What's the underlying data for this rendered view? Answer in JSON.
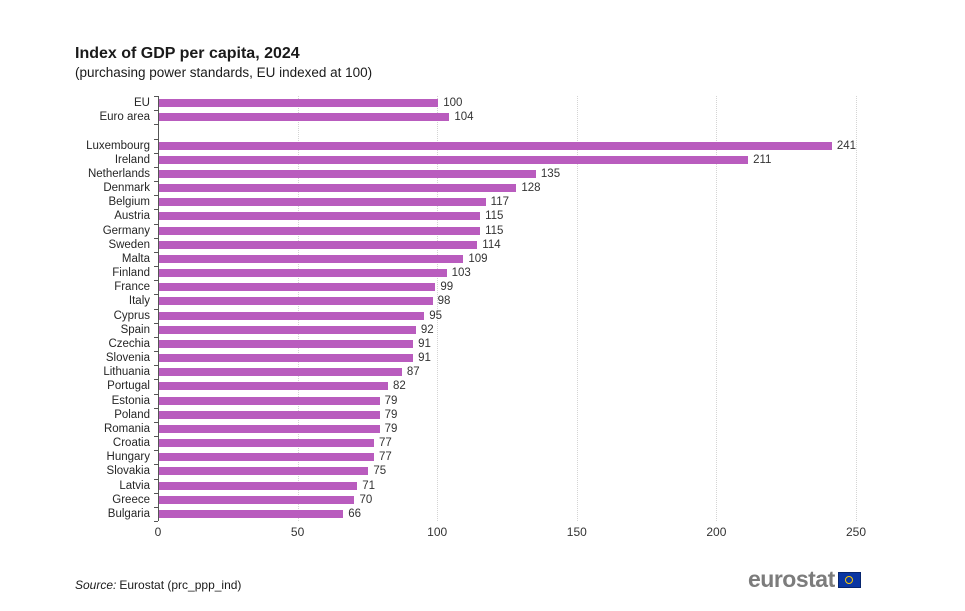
{
  "chart": {
    "title": "Index of GDP per capita, 2024",
    "subtitle": "(purchasing power standards, EU indexed at 100)"
  },
  "source": {
    "label": "Source:",
    "text": "Eurostat (prc_ppp_ind)"
  },
  "logo": {
    "wordmark": "eurostat",
    "flag_icon": "eu-flag-icon"
  },
  "colors": {
    "bar": "#b95cbe",
    "axis": "#555555",
    "gridline": "#d4d4d4",
    "logo_gray": "#7c7c7c",
    "flag_blue": "#0a36a3",
    "flag_stars": "#ffcc00"
  },
  "chart_data": {
    "type": "bar",
    "orientation": "horizontal",
    "title": "Index of GDP per capita, 2024",
    "subtitle": "(purchasing power standards, EU indexed at 100)",
    "xlabel": "",
    "ylabel": "",
    "xlim": [
      0,
      250
    ],
    "x_ticks": [
      0,
      50,
      100,
      150,
      200,
      250
    ],
    "grid": "vertical-dotted",
    "value_labels": true,
    "bar_color": "#b95cbe",
    "groups": [
      {
        "name": "aggregates",
        "categories": [
          "EU",
          "Euro area"
        ],
        "values": [
          100,
          104
        ]
      },
      {
        "name": "countries",
        "categories": [
          "Luxembourg",
          "Ireland",
          "Netherlands",
          "Denmark",
          "Belgium",
          "Austria",
          "Germany",
          "Sweden",
          "Malta",
          "Finland",
          "France",
          "Italy",
          "Cyprus",
          "Spain",
          "Czechia",
          "Slovenia",
          "Lithuania",
          "Portugal",
          "Estonia",
          "Poland",
          "Romania",
          "Croatia",
          "Hungary",
          "Slovakia",
          "Latvia",
          "Greece",
          "Bulgaria"
        ],
        "values": [
          241,
          211,
          135,
          128,
          117,
          115,
          115,
          114,
          109,
          103,
          99,
          98,
          95,
          92,
          91,
          91,
          87,
          82,
          79,
          79,
          79,
          77,
          77,
          75,
          71,
          70,
          66
        ]
      }
    ]
  }
}
